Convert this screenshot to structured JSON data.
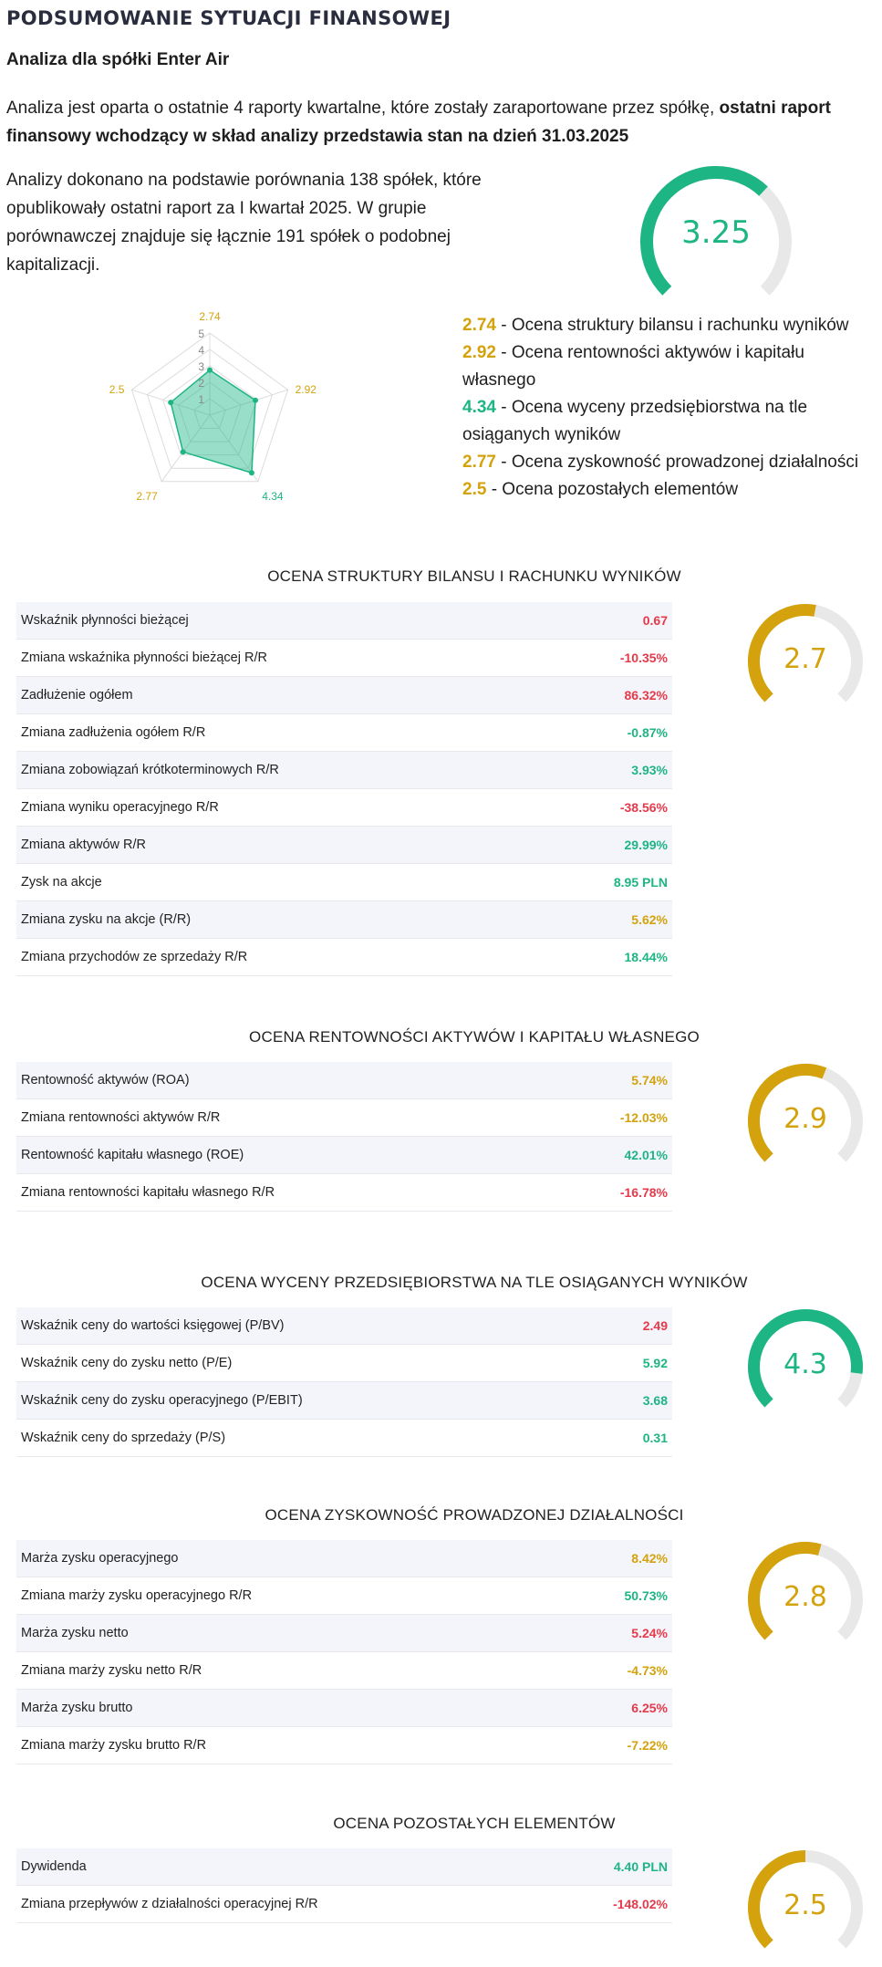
{
  "colors": {
    "green": "#1db584",
    "gold": "#d4a20c",
    "red": "#e8394a",
    "track": "#e8e8e8"
  },
  "header": {
    "title": "PODSUMOWANIE SYTUACJI FINANSOWEJ",
    "subtitle": "Analiza dla spółki Enter Air"
  },
  "intro": {
    "text": "Analiza jest oparta o ostatnie 4 raporty kwartalne, które zostały zaraportowane przez spółkę, ",
    "bold": "ostatni raport finansowy wchodzący w skład analizy przedstawia stan na dzień 31.03.2025"
  },
  "comparison": "Analizy dokonano na podstawie porównania 138 spółek, które opublikowały ostatni raport za I kwartał 2025. W grupie porównawczej znajduje się łącznie 191 spółek o podobnej kapitalizacji.",
  "overall": {
    "score": "3.25",
    "fraction": 0.66,
    "color": "green"
  },
  "radar": {
    "scale_max": 5,
    "scale_labels": [
      "1",
      "2",
      "3",
      "4",
      "5"
    ],
    "axes": [
      {
        "value": 2.74,
        "label": "2.74",
        "color": "gold"
      },
      {
        "value": 2.92,
        "label": "2.92",
        "color": "gold"
      },
      {
        "value": 4.34,
        "label": "4.34",
        "color": "green"
      },
      {
        "value": 2.77,
        "label": "2.77",
        "color": "gold"
      },
      {
        "value": 2.5,
        "label": "2.5",
        "color": "gold"
      }
    ]
  },
  "legend": [
    {
      "score": "2.74",
      "text": " - Ocena struktury bilansu i rachunku wyników",
      "color": "gold"
    },
    {
      "score": "2.92",
      "text": " - Ocena rentowności aktywów i kapitału własnego",
      "color": "gold"
    },
    {
      "score": "4.34",
      "text": " - Ocena wyceny przedsiębiorstwa na tle osiąganych wyników",
      "color": "green"
    },
    {
      "score": "2.77",
      "text": " - Ocena zyskowność prowadzonej działalności",
      "color": "gold"
    },
    {
      "score": "2.5",
      "text": " - Ocena pozostałych elementów",
      "color": "gold"
    }
  ],
  "sections": [
    {
      "title": "Ocena struktury bilansu i rachunku wyników",
      "score": "2.7",
      "fraction": 0.54,
      "color": "gold",
      "rows": [
        {
          "label": "Wskaźnik płynności bieżącej",
          "value": "0.67",
          "color": "red"
        },
        {
          "label": "Zmiana wskaźnika płynności bieżącej R/R",
          "value": "-10.35%",
          "color": "red"
        },
        {
          "label": "Zadłużenie ogółem",
          "value": "86.32%",
          "color": "red"
        },
        {
          "label": "Zmiana zadłużenia ogółem R/R",
          "value": "-0.87%",
          "color": "green"
        },
        {
          "label": "Zmiana zobowiązań krótkoterminowych R/R",
          "value": "3.93%",
          "color": "green"
        },
        {
          "label": "Zmiana wyniku operacyjnego R/R",
          "value": "-38.56%",
          "color": "red"
        },
        {
          "label": "Zmiana aktywów R/R",
          "value": "29.99%",
          "color": "green"
        },
        {
          "label": "Zysk na akcje",
          "value": "8.95 PLN",
          "color": "green"
        },
        {
          "label": "Zmiana zysku na akcje (R/R)",
          "value": "5.62%",
          "color": "gold"
        },
        {
          "label": "Zmiana przychodów ze sprzedaży R/R",
          "value": "18.44%",
          "color": "green"
        }
      ]
    },
    {
      "title": "Ocena rentowności aktywów i kapitału własnego",
      "score": "2.9",
      "fraction": 0.58,
      "color": "gold",
      "rows": [
        {
          "label": "Rentowność aktywów (ROA)",
          "value": "5.74%",
          "color": "gold"
        },
        {
          "label": "Zmiana rentowności aktywów R/R",
          "value": "-12.03%",
          "color": "gold"
        },
        {
          "label": "Rentowność kapitału własnego (ROE)",
          "value": "42.01%",
          "color": "green"
        },
        {
          "label": "Zmiana rentowności kapitału własnego R/R",
          "value": "-16.78%",
          "color": "red"
        }
      ]
    },
    {
      "title": "Ocena wyceny przedsiębiorstwa na tle osiąganych wyników",
      "score": "4.3",
      "fraction": 0.86,
      "color": "green",
      "rows": [
        {
          "label": "Wskaźnik ceny do wartości księgowej (P/BV)",
          "value": "2.49",
          "color": "red"
        },
        {
          "label": "Wskaźnik ceny do zysku netto (P/E)",
          "value": "5.92",
          "color": "green"
        },
        {
          "label": "Wskaźnik ceny do zysku operacyjnego (P/EBIT)",
          "value": "3.68",
          "color": "green"
        },
        {
          "label": "Wskaźnik ceny do sprzedaży (P/S)",
          "value": "0.31",
          "color": "green"
        }
      ]
    },
    {
      "title": "Ocena zyskowność prowadzonej działalności",
      "score": "2.8",
      "fraction": 0.56,
      "color": "gold",
      "rows": [
        {
          "label": "Marża zysku operacyjnego",
          "value": "8.42%",
          "color": "gold"
        },
        {
          "label": "Zmiana marży zysku operacyjnego R/R",
          "value": "50.73%",
          "color": "green"
        },
        {
          "label": "Marża zysku netto",
          "value": "5.24%",
          "color": "red"
        },
        {
          "label": "Zmiana marży zysku netto R/R",
          "value": "-4.73%",
          "color": "gold"
        },
        {
          "label": "Marża zysku brutto",
          "value": "6.25%",
          "color": "red"
        },
        {
          "label": "Zmiana marży zysku brutto R/R",
          "value": "-7.22%",
          "color": "gold"
        }
      ]
    },
    {
      "title": "Ocena pozostałych elementów",
      "score": "2.5",
      "fraction": 0.5,
      "color": "gold",
      "rows": [
        {
          "label": "Dywidenda",
          "value": "4.40 PLN",
          "color": "green"
        },
        {
          "label": "Zmiana przepływów z działalności operacyjnej R/R",
          "value": "-148.02%",
          "color": "red"
        }
      ]
    }
  ]
}
